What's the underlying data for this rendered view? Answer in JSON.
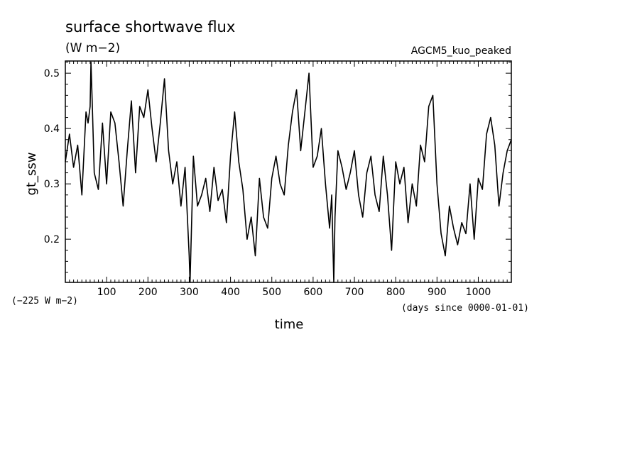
{
  "chart_data": {
    "type": "line",
    "title": "surface shortwave flux",
    "units_label": "(W m−2)",
    "experiment_label": "AGCM5_kuo_peaked",
    "ylabel": "gt_ssw",
    "xlabel": "time",
    "offset_note": "(−225 W m−2)",
    "x_units_note": "(days since 0000-01-01)",
    "xlim": [
      0,
      1080
    ],
    "ylim": [
      0.122,
      0.522
    ],
    "x_ticks": [
      100,
      200,
      300,
      400,
      500,
      600,
      700,
      800,
      900,
      1000
    ],
    "y_ticks": [
      0.2,
      0.3,
      0.4,
      0.5
    ],
    "grid": false,
    "series": [
      {
        "x": [
          0,
          10,
          20,
          30,
          40,
          50,
          55,
          60,
          62,
          65,
          70,
          80,
          90,
          100,
          110,
          120,
          130,
          140,
          150,
          160,
          170,
          180,
          190,
          200,
          210,
          220,
          230,
          240,
          250,
          260,
          270,
          280,
          290,
          300,
          302,
          310,
          320,
          330,
          340,
          350,
          360,
          370,
          380,
          390,
          400,
          410,
          420,
          430,
          440,
          450,
          460,
          470,
          480,
          490,
          500,
          510,
          520,
          530,
          540,
          550,
          560,
          570,
          580,
          590,
          600,
          610,
          620,
          630,
          640,
          645,
          650,
          653,
          660,
          670,
          680,
          690,
          700,
          710,
          720,
          730,
          740,
          750,
          760,
          770,
          780,
          790,
          800,
          810,
          820,
          830,
          840,
          850,
          860,
          870,
          880,
          890,
          900,
          910,
          920,
          930,
          940,
          950,
          960,
          970,
          980,
          990,
          1000,
          1010,
          1020,
          1030,
          1040,
          1050,
          1060,
          1070,
          1080
        ],
        "y": [
          0.34,
          0.39,
          0.33,
          0.37,
          0.28,
          0.43,
          0.41,
          0.44,
          0.52,
          0.45,
          0.32,
          0.29,
          0.41,
          0.3,
          0.43,
          0.41,
          0.34,
          0.26,
          0.36,
          0.45,
          0.32,
          0.44,
          0.42,
          0.47,
          0.4,
          0.34,
          0.41,
          0.49,
          0.36,
          0.3,
          0.34,
          0.26,
          0.33,
          0.17,
          0.12,
          0.35,
          0.26,
          0.28,
          0.31,
          0.25,
          0.33,
          0.27,
          0.29,
          0.23,
          0.35,
          0.43,
          0.34,
          0.29,
          0.2,
          0.24,
          0.17,
          0.31,
          0.24,
          0.22,
          0.31,
          0.35,
          0.3,
          0.28,
          0.37,
          0.43,
          0.47,
          0.36,
          0.43,
          0.5,
          0.33,
          0.35,
          0.4,
          0.3,
          0.22,
          0.28,
          0.12,
          0.24,
          0.36,
          0.33,
          0.29,
          0.32,
          0.36,
          0.28,
          0.24,
          0.32,
          0.35,
          0.28,
          0.25,
          0.35,
          0.28,
          0.18,
          0.34,
          0.3,
          0.33,
          0.23,
          0.3,
          0.26,
          0.37,
          0.34,
          0.44,
          0.46,
          0.3,
          0.21,
          0.17,
          0.26,
          0.22,
          0.19,
          0.23,
          0.21,
          0.3,
          0.2,
          0.31,
          0.29,
          0.39,
          0.42,
          0.37,
          0.26,
          0.32,
          0.36,
          0.38
        ]
      }
    ]
  }
}
